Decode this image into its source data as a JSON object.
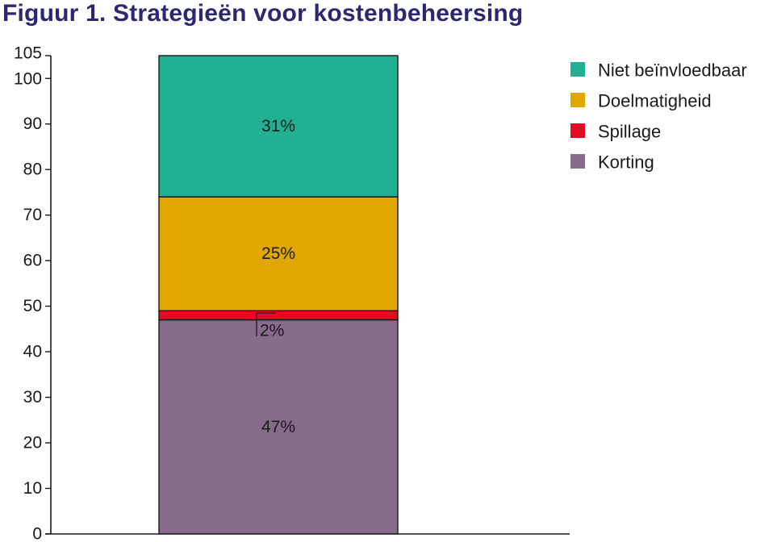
{
  "chart_data": {
    "type": "bar",
    "stacked": true,
    "title": "Figuur 1. Strategieën voor kostenbeheersing",
    "categories": [
      ""
    ],
    "yticks": [
      0,
      10,
      20,
      30,
      40,
      50,
      60,
      70,
      80,
      90,
      100,
      105
    ],
    "ylim": [
      0,
      105
    ],
    "grid": false,
    "legend_position": "top-right",
    "series": [
      {
        "name": "Korting",
        "values": [
          47
        ],
        "label": "47%",
        "color": "#876b8a"
      },
      {
        "name": "Spillage",
        "values": [
          2
        ],
        "label": "2%",
        "color": "#e30a22"
      },
      {
        "name": "Doelmatigheid",
        "values": [
          25
        ],
        "label": "25%",
        "color": "#dfa700"
      },
      {
        "name": "Niet beïnvloedbaar",
        "values": [
          31
        ],
        "label": "31%",
        "color": "#21b192"
      }
    ],
    "legend_order": [
      "Niet beïnvloedbaar",
      "Doelmatigheid",
      "Spillage",
      "Korting"
    ]
  }
}
